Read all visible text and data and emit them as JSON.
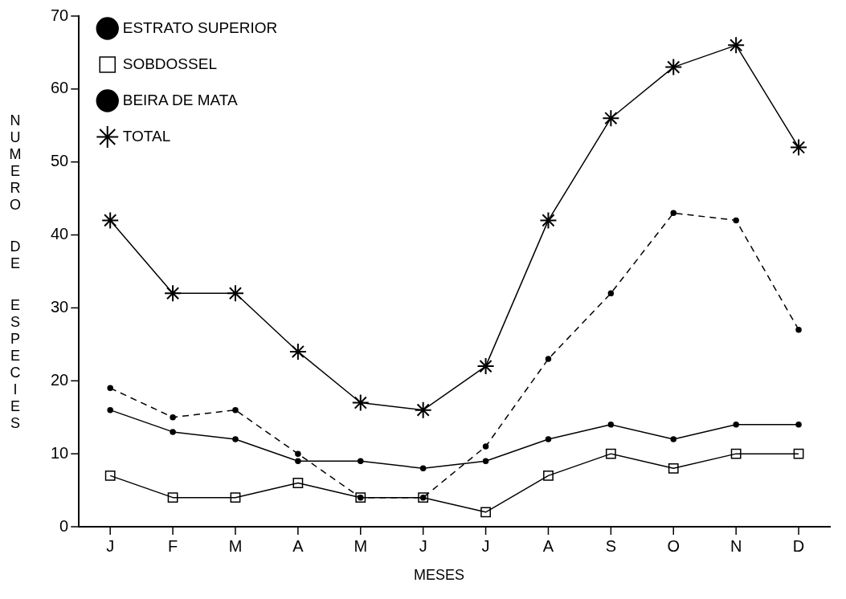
{
  "chart_data": {
    "type": "line",
    "xlabel": "MESES",
    "ylabel": "NUMERO DE ESPECIES",
    "categories": [
      "J",
      "F",
      "M",
      "A",
      "M",
      "J",
      "J",
      "A",
      "S",
      "O",
      "N",
      "D"
    ],
    "ylim": [
      0,
      70
    ],
    "yticks": [
      0,
      10,
      20,
      30,
      40,
      50,
      60,
      70
    ],
    "grid": false,
    "legend": "top left",
    "series": [
      {
        "name": "ESTRATO SUPERIOR",
        "color": "#000000",
        "marker": "circle",
        "line_style": "dashed",
        "values": [
          19,
          15,
          16,
          10,
          4,
          4,
          11,
          23,
          32,
          43,
          42,
          27
        ]
      },
      {
        "name": "SOBDOSSEL",
        "color": "#000000",
        "marker": "square",
        "line_style": "solid",
        "values": [
          7,
          4,
          4,
          6,
          4,
          4,
          2,
          7,
          10,
          8,
          10,
          10
        ]
      },
      {
        "name": "BEIRA DE MATA",
        "color": "#000000",
        "marker": "circle",
        "line_style": "solid",
        "values": [
          16,
          13,
          12,
          9,
          9,
          8,
          9,
          12,
          14,
          12,
          14,
          14
        ]
      },
      {
        "name": "TOTAL",
        "color": "#000000",
        "marker": "cross",
        "line_style": "solid",
        "values": [
          42,
          32,
          32,
          24,
          17,
          16,
          22,
          42,
          56,
          63,
          66,
          52
        ]
      }
    ]
  }
}
